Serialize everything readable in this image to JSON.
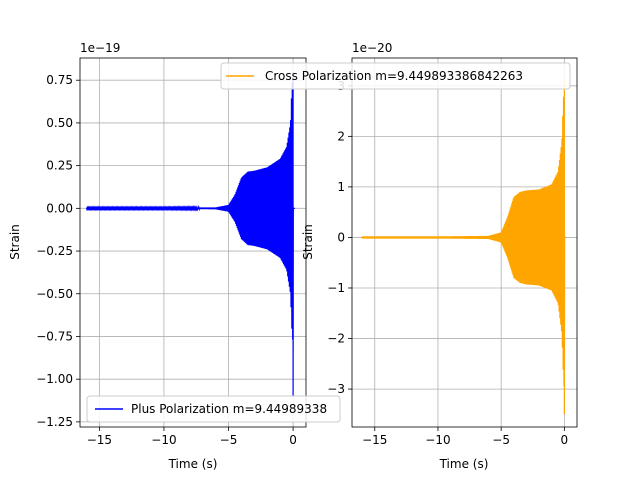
{
  "chart_data": [
    {
      "type": "line",
      "xlabel": "Time (s)",
      "ylabel": "Strain",
      "offset_text": "1e−19",
      "xlim": [
        -16.5,
        1.0
      ],
      "ylim": [
        -1.28,
        0.88
      ],
      "xticks": [
        -15,
        -10,
        -5,
        0
      ],
      "xtick_labels": [
        "−15",
        "−10",
        "−5",
        "0"
      ],
      "yticks": [
        -1.25,
        -1.0,
        -0.75,
        -0.5,
        -0.25,
        0.0,
        0.25,
        0.5,
        0.75
      ],
      "ytick_labels": [
        "−1.25",
        "−1.00",
        "−0.75",
        "−0.50",
        "−0.25",
        "0.00",
        "0.25",
        "0.50",
        "0.75"
      ],
      "grid": true,
      "legend_position": "lower left",
      "series": [
        {
          "name": "Plus Polarization m=9.449893386842263",
          "legend_text": "Plus Polarization m=9.44989338",
          "color": "#0000ff",
          "x_range": [
            -16.0,
            0.0
          ],
          "envelope": {
            "x": [
              -16.0,
              -10.0,
              -6.0,
              -5.0,
              -4.5,
              -4.0,
              -3.5,
              -3.0,
              -2.0,
              -1.0,
              -0.5,
              -0.2,
              -0.1,
              0.0
            ],
            "y": [
              0.004,
              0.004,
              0.005,
              0.02,
              0.08,
              0.18,
              0.215,
              0.22,
              0.24,
              0.29,
              0.36,
              0.5,
              0.7,
              0.8
            ]
          },
          "min_value": -1.1
        }
      ]
    },
    {
      "type": "line",
      "xlabel": "Time (s)",
      "ylabel": "Strain",
      "offset_text": "1e−20",
      "xlim": [
        -16.8,
        1.0
      ],
      "ylim": [
        -3.75,
        3.55
      ],
      "xticks": [
        -15,
        -10,
        -5,
        0
      ],
      "xtick_labels": [
        "−15",
        "−10",
        "−5",
        "0"
      ],
      "yticks": [
        -3,
        -2,
        -1,
        0,
        1,
        2,
        3
      ],
      "ytick_labels": [
        "−3",
        "−2",
        "−1",
        "0",
        "1",
        "2",
        "3"
      ],
      "grid": true,
      "legend_position": "upper right",
      "series": [
        {
          "name": "Cross Polarization m=9.449893386842263",
          "legend_text": "Cross Polarization m=9.449893386842263",
          "color": "#ffa500",
          "x_range": [
            -16.0,
            0.0
          ],
          "envelope": {
            "x": [
              -16.0,
              -10.0,
              -6.0,
              -5.0,
              -4.5,
              -4.0,
              -3.5,
              -3.0,
              -2.0,
              -1.0,
              -0.5,
              -0.2,
              -0.1,
              0.0
            ],
            "y": [
              0.02,
              0.02,
              0.03,
              0.1,
              0.4,
              0.8,
              0.9,
              0.93,
              0.95,
              1.05,
              1.3,
              1.9,
              2.6,
              3.1
            ]
          },
          "min_value": -3.5
        }
      ]
    }
  ]
}
